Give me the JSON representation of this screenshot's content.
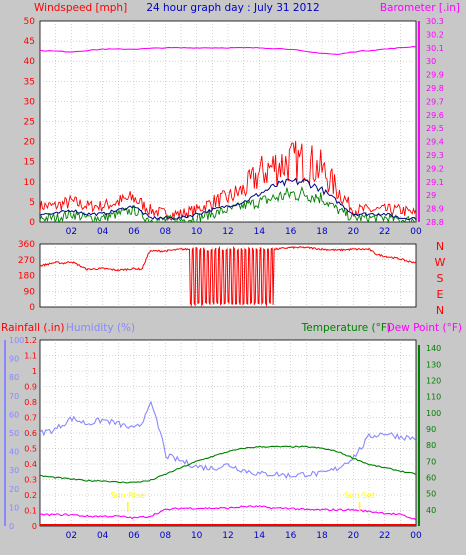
{
  "colors": {
    "background": "#c8c8c8",
    "plot_background": "#ffffff",
    "windspeed": "#ff0000",
    "gust": "#ff0000",
    "avg_wind": "#000080",
    "wind_other": "#008000",
    "barometer": "#ff00ff",
    "rainfall": "#ff0000",
    "humidity": "#8888ff",
    "temperature": "#008000",
    "dewpoint": "#ff00ff",
    "title": "#0000cc",
    "sun": "#ffff00"
  },
  "chart_data": [
    {
      "id": "wind-baro",
      "type": "line",
      "title": "24 hour graph day : July 31 2012",
      "ylabel_left": "Windspeed [mph]",
      "ylabel_right": "Barometer [.in]",
      "ylim_left": [
        0,
        50
      ],
      "ylim_right": [
        28.8,
        30.3
      ],
      "left_ticks": [
        "0",
        "5",
        "10",
        "15",
        "20",
        "25",
        "30",
        "35",
        "40",
        "45",
        "50"
      ],
      "right_ticks": [
        "28.8",
        "28.9",
        "29",
        "29.1",
        "29.2",
        "29.3",
        "29.4",
        "29.5",
        "29.6",
        "29.7",
        "29.8",
        "29.9",
        "30",
        "30.1",
        "30.2",
        "30.3"
      ],
      "x_ticks": [
        "02",
        "04",
        "06",
        "08",
        "10",
        "12",
        "14",
        "16",
        "18",
        "20",
        "22",
        "00"
      ],
      "grid": true,
      "series": [
        {
          "key": "barometer",
          "axis": "right",
          "x": [
            0,
            2,
            4,
            6,
            8,
            10,
            12,
            14,
            16,
            17,
            18,
            19,
            20,
            22,
            24
          ],
          "values": [
            30.08,
            30.07,
            30.09,
            30.09,
            30.1,
            30.1,
            30.1,
            30.1,
            30.09,
            30.07,
            30.06,
            30.05,
            30.07,
            30.09,
            30.11
          ]
        },
        {
          "key": "gust",
          "axis": "left",
          "x": [
            0,
            1,
            2,
            3,
            4,
            5,
            6,
            7,
            8,
            9,
            10,
            11,
            12,
            13,
            14,
            15,
            16,
            17,
            18,
            19,
            20,
            21,
            22,
            23,
            24
          ],
          "values": [
            4,
            4,
            5,
            4,
            4,
            5,
            6,
            3,
            2,
            2,
            3,
            5,
            6,
            8,
            12,
            14,
            15,
            15,
            13,
            8,
            3,
            3,
            3,
            3,
            2
          ]
        },
        {
          "key": "avg_wind",
          "axis": "left",
          "x": [
            0,
            1,
            2,
            3,
            4,
            5,
            6,
            7,
            8,
            9,
            10,
            11,
            12,
            13,
            14,
            15,
            16,
            17,
            18,
            19,
            20,
            21,
            22,
            23,
            24
          ],
          "values": [
            2,
            2,
            3,
            2,
            2,
            3,
            4,
            1,
            1,
            1,
            2,
            3,
            4,
            5,
            7,
            9,
            10,
            10,
            8,
            5,
            2,
            2,
            2,
            1,
            1
          ]
        },
        {
          "key": "wind_other",
          "axis": "left",
          "x": [
            0,
            1,
            2,
            3,
            4,
            5,
            6,
            7,
            8,
            9,
            10,
            11,
            12,
            13,
            14,
            15,
            16,
            17,
            18,
            19,
            20,
            21,
            22,
            23,
            24
          ],
          "values": [
            1,
            1,
            2,
            1,
            1,
            2,
            3,
            0.5,
            0.5,
            0.5,
            1,
            2,
            3,
            4,
            5,
            6,
            7,
            7,
            6,
            3,
            1,
            1,
            1,
            0.5,
            0.5
          ]
        }
      ]
    },
    {
      "id": "wind-dir",
      "type": "line",
      "ylim": [
        0,
        360
      ],
      "left_ticks": [
        "0",
        "90",
        "180",
        "270",
        "360"
      ],
      "right_ticks": [
        "N",
        "W",
        "S",
        "E",
        "N"
      ],
      "grid": true,
      "series": [
        {
          "key": "direction",
          "x": [
            0,
            0.5,
            1,
            1.5,
            2,
            3,
            4,
            5,
            6,
            6.5,
            7,
            8,
            9,
            10,
            11,
            12,
            13,
            14,
            14.5,
            15,
            16,
            17,
            18,
            19,
            20,
            21,
            21.5,
            22,
            23,
            23.5,
            24
          ],
          "values": [
            235,
            245,
            255,
            250,
            260,
            215,
            220,
            210,
            220,
            215,
            320,
            320,
            330,
            330,
            330,
            330,
            330,
            330,
            330,
            330,
            340,
            340,
            330,
            325,
            330,
            330,
            300,
            290,
            275,
            260,
            255
          ]
        }
      ],
      "oscillation": {
        "from": 9.5,
        "to": 14.9,
        "low": 10,
        "high": 340
      }
    },
    {
      "id": "rain-hum-temp",
      "type": "line",
      "ylabel_left_1": "Rainfall (.in)",
      "ylabel_left_2": "Humidity (%)",
      "ylabel_right_1": "Temperature (°F)",
      "ylabel_right_2": "Dew Point (°F)",
      "rain_ticks": [
        "0",
        "0.1",
        "0.2",
        "0.3",
        "0.4",
        "0.5",
        "0.6",
        "0.7",
        "0.8",
        "0.9",
        "1",
        "1.1",
        "1.2"
      ],
      "humidity_ticks": [
        "0",
        "10",
        "20",
        "30",
        "40",
        "50",
        "60",
        "70",
        "80",
        "90",
        "100"
      ],
      "temp_ticks": [
        "40",
        "50",
        "60",
        "70",
        "80",
        "90",
        "100",
        "110",
        "120",
        "130",
        "140"
      ],
      "ylim_temp": [
        30,
        145
      ],
      "ylim_humidity": [
        0,
        100
      ],
      "x_ticks": [
        "02",
        "04",
        "06",
        "08",
        "10",
        "12",
        "14",
        "16",
        "18",
        "20",
        "22",
        "00"
      ],
      "annotations": [
        {
          "text": "Sun Rise",
          "x": 5.6
        },
        {
          "text": "Sun Set",
          "x": 20.4
        }
      ],
      "series": [
        {
          "key": "humidity",
          "x": [
            0,
            1,
            2,
            3,
            4,
            5,
            6,
            6.5,
            7,
            7.3,
            7.8,
            8,
            9,
            10,
            11,
            12,
            13,
            14,
            15,
            16,
            17,
            18,
            19,
            20,
            20.5,
            21,
            22,
            23,
            24
          ],
          "values": [
            50,
            52,
            58,
            55,
            57,
            55,
            52,
            55,
            67,
            60,
            47,
            38,
            35,
            32,
            31,
            33,
            30,
            28,
            28,
            27,
            28,
            28,
            31,
            37,
            42,
            48,
            50,
            48,
            47
          ]
        },
        {
          "key": "temperature",
          "x": [
            0,
            1,
            2,
            3,
            4,
            5,
            6,
            7,
            8,
            9,
            10,
            11,
            12,
            13,
            14,
            15,
            16,
            17,
            18,
            19,
            20,
            21,
            22,
            23,
            24
          ],
          "values": [
            61,
            60,
            59,
            58,
            58,
            57,
            57,
            58,
            62,
            66,
            70,
            73,
            76,
            78,
            79,
            79,
            79,
            79,
            78,
            76,
            72,
            68,
            66,
            64,
            62
          ]
        },
        {
          "key": "dewpoint",
          "x": [
            0,
            1,
            2,
            3,
            4,
            5,
            6,
            7,
            8,
            9,
            10,
            11,
            12,
            13,
            14,
            15,
            16,
            17,
            18,
            19,
            20,
            21,
            22,
            23,
            24
          ],
          "values": [
            37,
            37,
            37,
            36,
            36,
            36,
            35,
            36,
            40,
            41,
            41,
            41,
            41,
            42,
            42,
            41,
            41,
            40,
            40,
            40,
            40,
            39,
            38,
            37,
            34
          ]
        },
        {
          "key": "rainfall",
          "x": [
            0,
            24
          ],
          "values": [
            0,
            0
          ]
        }
      ]
    }
  ]
}
